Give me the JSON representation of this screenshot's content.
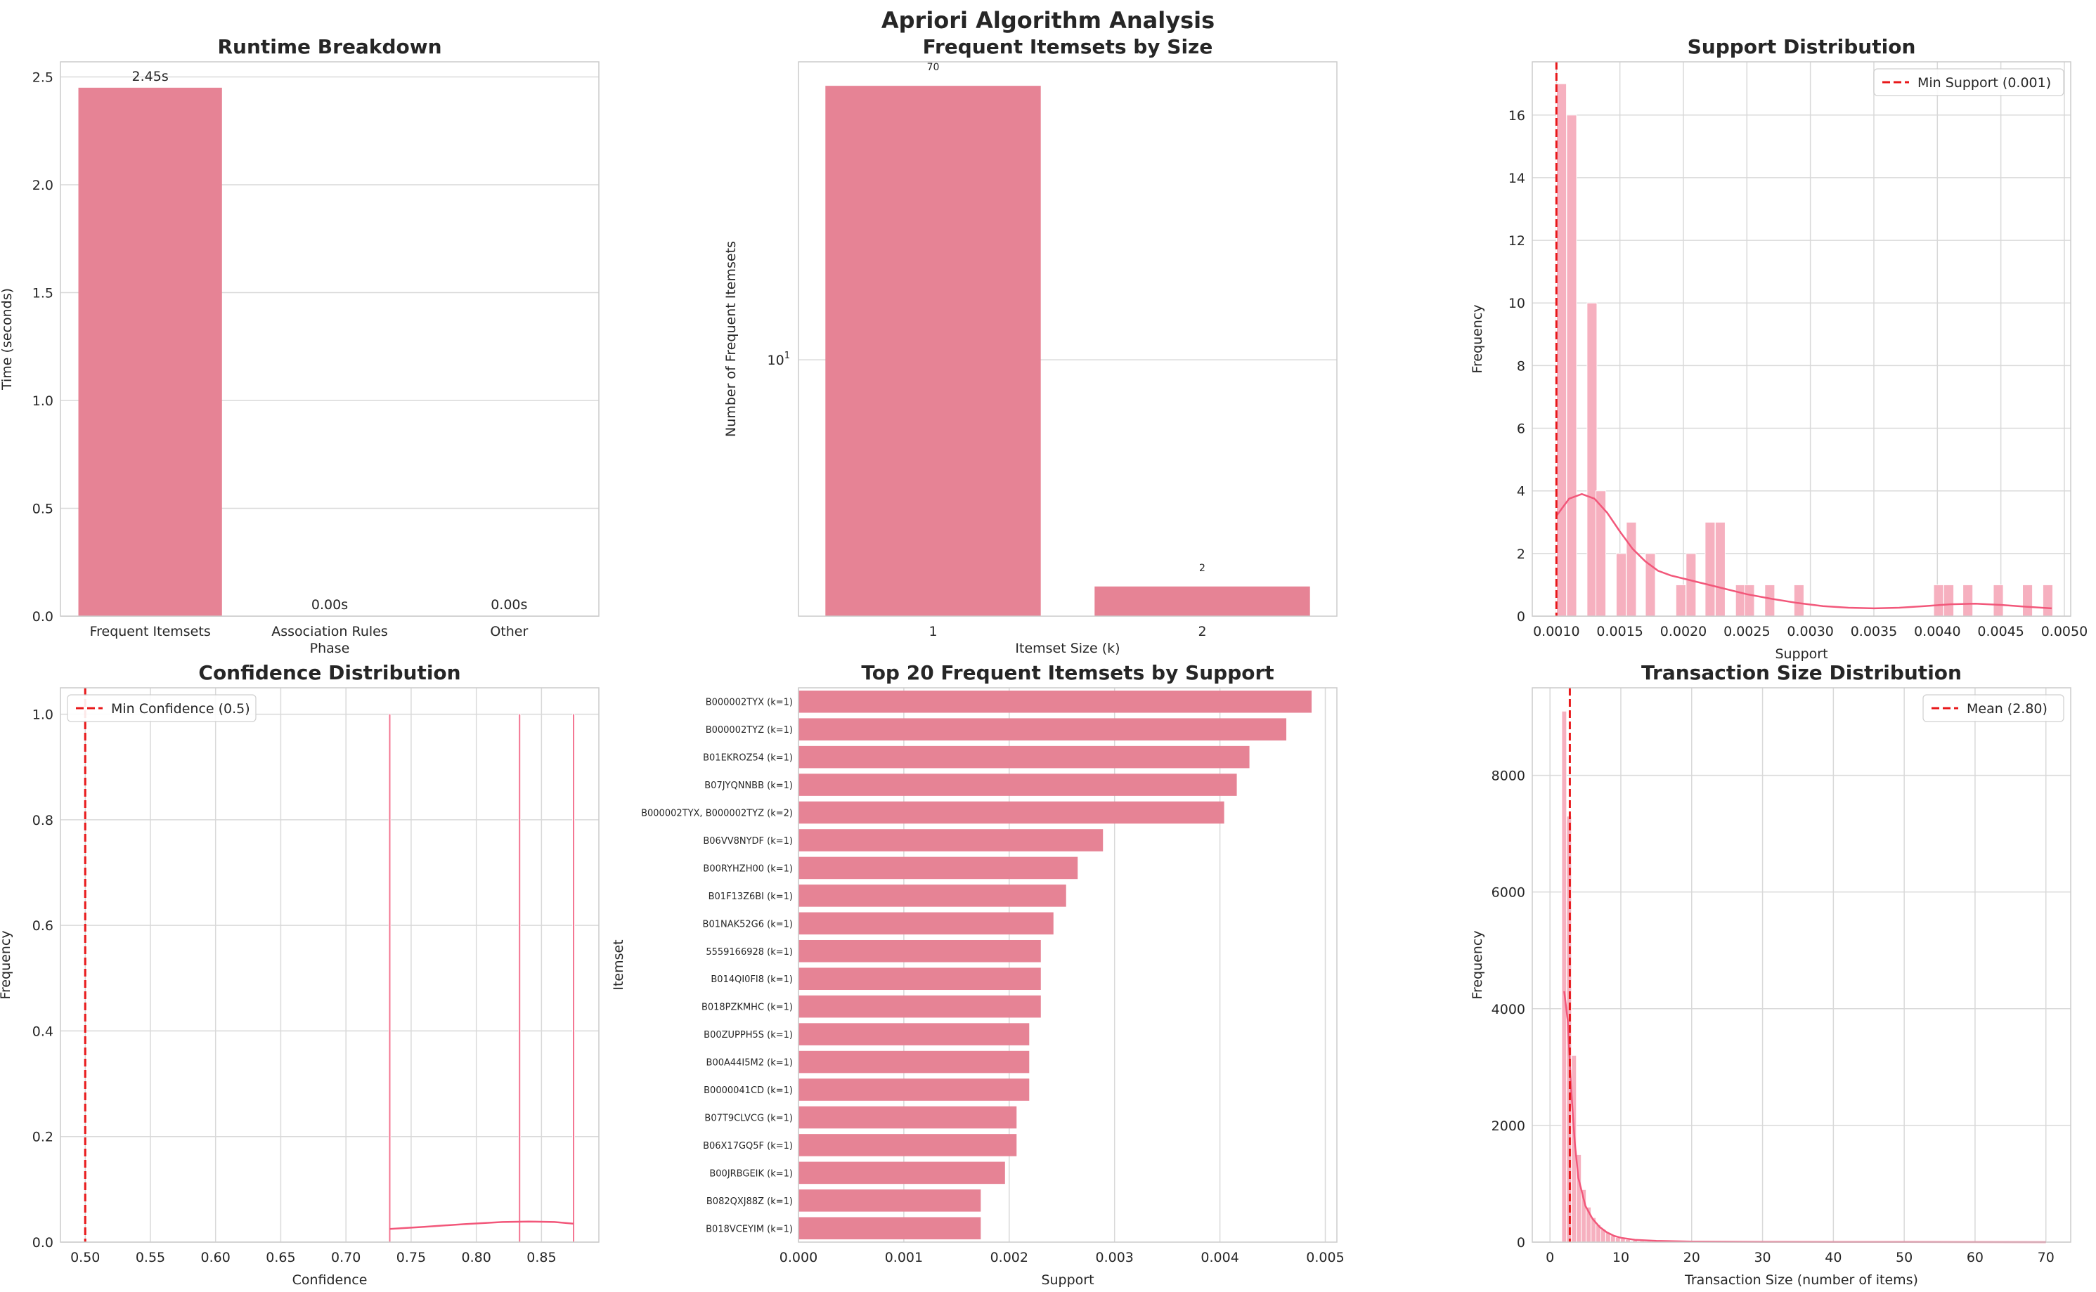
{
  "figure": {
    "title": "Apriori Algorithm Analysis"
  },
  "colors": {
    "bar": "#e68395",
    "hist": "#f6b0bf",
    "kde": "#f2577a",
    "grid": "#d9d9d9",
    "refline": "#e8191b",
    "spine": "#cccccc"
  },
  "chart_data": [
    {
      "id": "runtime",
      "type": "bar",
      "title": "Runtime Breakdown",
      "xlabel": "Phase",
      "ylabel": "Time (seconds)",
      "categories": [
        "Frequent Itemsets",
        "Association Rules",
        "Other"
      ],
      "values": [
        2.45,
        0.0,
        0.0
      ],
      "data_labels": [
        "2.45s",
        "0.00s",
        "0.00s"
      ],
      "ylim": [
        0,
        2.57
      ],
      "yticks": [
        0.0,
        0.5,
        1.0,
        1.5,
        2.0,
        2.5
      ],
      "ytick_labels": [
        "0.0",
        "0.5",
        "1.0",
        "1.5",
        "2.0",
        "2.5"
      ],
      "grid": true
    },
    {
      "id": "itemsets_size",
      "type": "bar",
      "title": "Frequent Itemsets by Size",
      "xlabel": "Itemset Size (k)",
      "ylabel": "Number of Frequent Itemsets",
      "categories": [
        "1",
        "2"
      ],
      "values": [
        70,
        2
      ],
      "data_labels": [
        "70",
        "2"
      ],
      "yscale": "log",
      "ylim": [
        1.62,
        83
      ],
      "yticks": [
        10
      ],
      "ytick_labels": [
        "10^1"
      ],
      "grid": true
    },
    {
      "id": "support_dist",
      "type": "histogram",
      "title": "Support Distribution",
      "xlabel": "Support",
      "ylabel": "Frequency",
      "xlim": [
        0.00081,
        0.00505
      ],
      "ylim": [
        0,
        17.7
      ],
      "bin_width": 7.8e-05,
      "bins": [
        {
          "x": 0.00104,
          "count": 17
        },
        {
          "x": 0.00112,
          "count": 16
        },
        {
          "x": 0.00128,
          "count": 10
        },
        {
          "x": 0.00135,
          "count": 4
        },
        {
          "x": 0.00151,
          "count": 2
        },
        {
          "x": 0.00159,
          "count": 3
        },
        {
          "x": 0.00174,
          "count": 2
        },
        {
          "x": 0.00198,
          "count": 1
        },
        {
          "x": 0.00206,
          "count": 2
        },
        {
          "x": 0.00221,
          "count": 3
        },
        {
          "x": 0.00229,
          "count": 3
        },
        {
          "x": 0.00245,
          "count": 1
        },
        {
          "x": 0.00252,
          "count": 1
        },
        {
          "x": 0.00268,
          "count": 1
        },
        {
          "x": 0.00291,
          "count": 1
        },
        {
          "x": 0.00401,
          "count": 1
        },
        {
          "x": 0.00409,
          "count": 1
        },
        {
          "x": 0.00424,
          "count": 1
        },
        {
          "x": 0.00448,
          "count": 1
        },
        {
          "x": 0.00471,
          "count": 1
        },
        {
          "x": 0.00487,
          "count": 1
        }
      ],
      "kde": [
        [
          0.001,
          3.2
        ],
        [
          0.0011,
          3.75
        ],
        [
          0.0012,
          3.9
        ],
        [
          0.0013,
          3.75
        ],
        [
          0.0014,
          3.3
        ],
        [
          0.0015,
          2.7
        ],
        [
          0.0016,
          2.15
        ],
        [
          0.0017,
          1.75
        ],
        [
          0.0018,
          1.45
        ],
        [
          0.0019,
          1.3
        ],
        [
          0.002,
          1.2
        ],
        [
          0.0021,
          1.1
        ],
        [
          0.0022,
          1.0
        ],
        [
          0.0023,
          0.9
        ],
        [
          0.0025,
          0.7
        ],
        [
          0.0027,
          0.55
        ],
        [
          0.0029,
          0.42
        ],
        [
          0.0031,
          0.32
        ],
        [
          0.0033,
          0.27
        ],
        [
          0.0035,
          0.25
        ],
        [
          0.0037,
          0.27
        ],
        [
          0.0039,
          0.32
        ],
        [
          0.0041,
          0.38
        ],
        [
          0.0043,
          0.4
        ],
        [
          0.0045,
          0.36
        ],
        [
          0.0047,
          0.3
        ],
        [
          0.0049,
          0.25
        ]
      ],
      "reference_line": {
        "x": 0.001,
        "label": "Min Support (0.001)"
      },
      "xticks": [
        0.001,
        0.0015,
        0.002,
        0.0025,
        0.003,
        0.0035,
        0.004,
        0.0045,
        0.005
      ],
      "xtick_labels": [
        "0.0010",
        "0.0015",
        "0.0020",
        "0.0025",
        "0.0030",
        "0.0035",
        "0.0040",
        "0.0045",
        "0.0050"
      ],
      "yticks": [
        0,
        2,
        4,
        6,
        8,
        10,
        12,
        14,
        16
      ],
      "ytick_labels": [
        "0",
        "2",
        "4",
        "6",
        "8",
        "10",
        "12",
        "14",
        "16"
      ],
      "legend_position": "upper right",
      "grid": true
    },
    {
      "id": "confidence_dist",
      "type": "histogram",
      "title": "Confidence Distribution",
      "xlabel": "Confidence",
      "ylabel": "Frequency",
      "xlim": [
        0.481,
        0.894
      ],
      "ylim": [
        0,
        1.05
      ],
      "bin_width": 0.0014,
      "bins": [
        {
          "x": 0.7336,
          "count": 1
        },
        {
          "x": 0.8332,
          "count": 1
        },
        {
          "x": 0.8746,
          "count": 1
        }
      ],
      "kde": [
        [
          0.7336,
          0.025
        ],
        [
          0.76,
          0.029
        ],
        [
          0.79,
          0.034
        ],
        [
          0.82,
          0.038
        ],
        [
          0.84,
          0.039
        ],
        [
          0.86,
          0.038
        ],
        [
          0.8746,
          0.035
        ]
      ],
      "reference_line": {
        "x": 0.5,
        "label": "Min Confidence (0.5)"
      },
      "xticks": [
        0.5,
        0.55,
        0.6,
        0.65,
        0.7,
        0.75,
        0.8,
        0.85
      ],
      "xtick_labels": [
        "0.50",
        "0.55",
        "0.60",
        "0.65",
        "0.70",
        "0.75",
        "0.80",
        "0.85"
      ],
      "yticks": [
        0.0,
        0.2,
        0.4,
        0.6,
        0.8,
        1.0
      ],
      "ytick_labels": [
        "0.0",
        "0.2",
        "0.4",
        "0.6",
        "0.8",
        "1.0"
      ],
      "legend_position": "upper left",
      "grid": true
    },
    {
      "id": "top20",
      "type": "barh",
      "title": "Top 20 Frequent Itemsets by Support",
      "xlabel": "Support",
      "ylabel": "Itemset",
      "categories": [
        "B000002TYX (k=1)",
        "B000002TYZ (k=1)",
        "B01EKROZ54 (k=1)",
        "B07JYQNNBB (k=1)",
        "B000002TYX, B000002TYZ (k=2)",
        "B06VV8NYDF (k=1)",
        "B00RYHZH00 (k=1)",
        "B01F13Z6BI (k=1)",
        "B01NAK52G6 (k=1)",
        "5559166928 (k=1)",
        "B014QI0FI8 (k=1)",
        "B018PZKMHC (k=1)",
        "B00ZUPPH5S (k=1)",
        "B00A44I5M2 (k=1)",
        "B0000041CD (k=1)",
        "B07T9CLVCG (k=1)",
        "B06X17GQ5F (k=1)",
        "B00JRBGEIK (k=1)",
        "B082QXJ88Z (k=1)",
        "B018VCEYIM (k=1)"
      ],
      "values": [
        0.00487,
        0.00463,
        0.00428,
        0.00416,
        0.00404,
        0.00289,
        0.00265,
        0.00254,
        0.00242,
        0.0023,
        0.0023,
        0.0023,
        0.00219,
        0.00219,
        0.00219,
        0.00207,
        0.00207,
        0.00196,
        0.00173,
        0.00173
      ],
      "xlim": [
        0,
        0.00511
      ],
      "xticks": [
        0.0,
        0.001,
        0.002,
        0.003,
        0.004,
        0.005
      ],
      "xtick_labels": [
        "0.000",
        "0.001",
        "0.002",
        "0.003",
        "0.004",
        "0.005"
      ],
      "grid": true
    },
    {
      "id": "transaction_size",
      "type": "histogram",
      "title": "Transaction Size Distribution",
      "xlabel": "Transaction Size (number of items)",
      "ylabel": "Frequency",
      "xlim": [
        -2.5,
        73.5
      ],
      "ylim": [
        0,
        9500
      ],
      "bin_width": 0.69,
      "bins": [
        {
          "x": 2.0,
          "count": 9100
        },
        {
          "x": 2.69,
          "count": 7300
        },
        {
          "x": 3.38,
          "count": 3200
        },
        {
          "x": 4.07,
          "count": 1500
        },
        {
          "x": 4.76,
          "count": 900
        },
        {
          "x": 5.45,
          "count": 600
        },
        {
          "x": 6.14,
          "count": 420
        },
        {
          "x": 6.83,
          "count": 300
        },
        {
          "x": 7.52,
          "count": 220
        },
        {
          "x": 8.21,
          "count": 160
        },
        {
          "x": 8.9,
          "count": 110
        },
        {
          "x": 9.59,
          "count": 80
        },
        {
          "x": 10.28,
          "count": 60
        },
        {
          "x": 11.0,
          "count": 45
        },
        {
          "x": 12.0,
          "count": 30
        },
        {
          "x": 13.0,
          "count": 20
        },
        {
          "x": 14.0,
          "count": 15
        },
        {
          "x": 15.0,
          "count": 10
        }
      ],
      "kde": [
        [
          2.0,
          4300
        ],
        [
          2.5,
          3800
        ],
        [
          3.0,
          2600
        ],
        [
          3.5,
          1700
        ],
        [
          4.0,
          1100
        ],
        [
          5.0,
          620
        ],
        [
          6.0,
          400
        ],
        [
          7.0,
          260
        ],
        [
          8.0,
          170
        ],
        [
          9.0,
          110
        ],
        [
          10.0,
          75
        ],
        [
          12.0,
          40
        ],
        [
          15.0,
          20
        ],
        [
          20.0,
          10
        ],
        [
          30.0,
          5
        ],
        [
          40.0,
          3
        ],
        [
          50.0,
          2
        ],
        [
          60.0,
          1
        ],
        [
          70.0,
          0
        ]
      ],
      "reference_line": {
        "x": 2.8,
        "label": "Mean (2.80)"
      },
      "xticks": [
        0,
        10,
        20,
        30,
        40,
        50,
        60,
        70
      ],
      "xtick_labels": [
        "0",
        "10",
        "20",
        "30",
        "40",
        "50",
        "60",
        "70"
      ],
      "yticks": [
        0,
        2000,
        4000,
        6000,
        8000
      ],
      "ytick_labels": [
        "0",
        "2000",
        "4000",
        "6000",
        "8000"
      ],
      "legend_position": "upper right",
      "grid": true
    }
  ]
}
